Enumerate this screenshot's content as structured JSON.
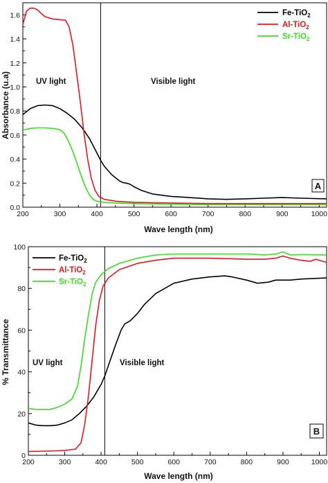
{
  "chart_data": [
    {
      "type": "line",
      "panel": "A",
      "xlabel": "Wave length (nm)",
      "ylabel": "Absorbance (u.a)",
      "xlim": [
        200,
        1020
      ],
      "ylim": [
        0,
        1.7
      ],
      "xticks": [
        "200",
        "300",
        "400",
        "500",
        "600",
        "700",
        "800",
        "900",
        "1000"
      ],
      "yticks": [
        "0.0",
        "0.2",
        "0.4",
        "0.6",
        "0.8",
        "1.0",
        "1.2",
        "1.4",
        "1.6"
      ],
      "grid": false,
      "legend_position": "top-right",
      "annotations": {
        "uv": "UV light",
        "visible": "Visible light"
      },
      "divider_x": 410,
      "series": [
        {
          "name": "Fe-TiO2",
          "color": "#000000",
          "points": [
            [
              200,
              0.77
            ],
            [
              220,
              0.82
            ],
            [
              240,
              0.845
            ],
            [
              260,
              0.85
            ],
            [
              280,
              0.845
            ],
            [
              300,
              0.82
            ],
            [
              320,
              0.78
            ],
            [
              340,
              0.73
            ],
            [
              360,
              0.66
            ],
            [
              380,
              0.57
            ],
            [
              400,
              0.45
            ],
            [
              410,
              0.39
            ],
            [
              420,
              0.34
            ],
            [
              440,
              0.27
            ],
            [
              460,
              0.22
            ],
            [
              470,
              0.205
            ],
            [
              480,
              0.2
            ],
            [
              490,
              0.19
            ],
            [
              500,
              0.17
            ],
            [
              520,
              0.14
            ],
            [
              550,
              0.11
            ],
            [
              600,
              0.09
            ],
            [
              650,
              0.08
            ],
            [
              700,
              0.07
            ],
            [
              750,
              0.065
            ],
            [
              800,
              0.07
            ],
            [
              850,
              0.075
            ],
            [
              900,
              0.08
            ],
            [
              950,
              0.075
            ],
            [
              1020,
              0.07
            ]
          ]
        },
        {
          "name": "Al-TiO2",
          "color": "#e8141b",
          "points": [
            [
              200,
              1.52
            ],
            [
              210,
              1.63
            ],
            [
              220,
              1.655
            ],
            [
              230,
              1.655
            ],
            [
              240,
              1.64
            ],
            [
              250,
              1.61
            ],
            [
              260,
              1.585
            ],
            [
              280,
              1.565
            ],
            [
              300,
              1.56
            ],
            [
              315,
              1.555
            ],
            [
              325,
              1.5
            ],
            [
              335,
              1.35
            ],
            [
              345,
              1.12
            ],
            [
              355,
              0.88
            ],
            [
              365,
              0.62
            ],
            [
              375,
              0.4
            ],
            [
              385,
              0.24
            ],
            [
              395,
              0.14
            ],
            [
              405,
              0.09
            ],
            [
              420,
              0.065
            ],
            [
              450,
              0.05
            ],
            [
              500,
              0.04
            ],
            [
              600,
              0.035
            ],
            [
              700,
              0.03
            ],
            [
              800,
              0.03
            ],
            [
              900,
              0.03
            ],
            [
              1020,
              0.03
            ]
          ]
        },
        {
          "name": "Sr-TiO2",
          "color": "#36e01c",
          "points": [
            [
              200,
              0.64
            ],
            [
              220,
              0.655
            ],
            [
              240,
              0.66
            ],
            [
              260,
              0.66
            ],
            [
              280,
              0.655
            ],
            [
              300,
              0.645
            ],
            [
              310,
              0.62
            ],
            [
              320,
              0.57
            ],
            [
              330,
              0.5
            ],
            [
              340,
              0.42
            ],
            [
              350,
              0.33
            ],
            [
              360,
              0.24
            ],
            [
              370,
              0.16
            ],
            [
              380,
              0.1
            ],
            [
              390,
              0.065
            ],
            [
              400,
              0.05
            ],
            [
              420,
              0.04
            ],
            [
              450,
              0.035
            ],
            [
              500,
              0.03
            ],
            [
              600,
              0.025
            ],
            [
              700,
              0.02
            ],
            [
              800,
              0.02
            ],
            [
              900,
              0.02
            ],
            [
              1020,
              0.02
            ]
          ]
        }
      ]
    },
    {
      "type": "line",
      "panel": "B",
      "xlabel": "Wave length (nm)",
      "ylabel": "% Transmittance",
      "xlim": [
        200,
        1020
      ],
      "ylim": [
        0,
        100
      ],
      "xticks": [
        "200",
        "300",
        "400",
        "500",
        "600",
        "700",
        "800",
        "900",
        "1000"
      ],
      "yticks": [
        "0",
        "20",
        "40",
        "60",
        "80",
        "100"
      ],
      "grid": false,
      "legend_position": "top-left",
      "annotations": {
        "uv": "UV light",
        "visible": "Visible light"
      },
      "divider_x": 410,
      "series": [
        {
          "name": "Fe-TiO2",
          "color": "#000000",
          "points": [
            [
              200,
              15.5
            ],
            [
              220,
              14.5
            ],
            [
              240,
              14.2
            ],
            [
              260,
              14.2
            ],
            [
              280,
              14.5
            ],
            [
              300,
              15.5
            ],
            [
              320,
              17
            ],
            [
              340,
              20
            ],
            [
              360,
              23.5
            ],
            [
              380,
              28
            ],
            [
              400,
              34
            ],
            [
              410,
              38
            ],
            [
              420,
              43
            ],
            [
              440,
              53
            ],
            [
              455,
              60
            ],
            [
              465,
              63
            ],
            [
              480,
              64.5
            ],
            [
              500,
              68
            ],
            [
              520,
              72.5
            ],
            [
              550,
              77.5
            ],
            [
              600,
              82.5
            ],
            [
              650,
              84.5
            ],
            [
              700,
              85.5
            ],
            [
              740,
              86
            ],
            [
              760,
              85.5
            ],
            [
              800,
              84
            ],
            [
              830,
              82.5
            ],
            [
              860,
              83
            ],
            [
              880,
              84
            ],
            [
              900,
              84
            ],
            [
              920,
              84
            ],
            [
              950,
              84.5
            ],
            [
              1020,
              85
            ]
          ]
        },
        {
          "name": "Al-TiO2",
          "color": "#e8141b",
          "points": [
            [
              200,
              1.8
            ],
            [
              250,
              2
            ],
            [
              300,
              2.3
            ],
            [
              330,
              3
            ],
            [
              345,
              6
            ],
            [
              355,
              15
            ],
            [
              365,
              28
            ],
            [
              375,
              45
            ],
            [
              385,
              62
            ],
            [
              395,
              74
            ],
            [
              405,
              81
            ],
            [
              420,
              85
            ],
            [
              450,
              89
            ],
            [
              500,
              92
            ],
            [
              550,
              93.5
            ],
            [
              600,
              94.5
            ],
            [
              700,
              94.5
            ],
            [
              800,
              94
            ],
            [
              850,
              94
            ],
            [
              880,
              94.5
            ],
            [
              900,
              95.5
            ],
            [
              920,
              94.5
            ],
            [
              950,
              93.5
            ],
            [
              975,
              93
            ],
            [
              990,
              94
            ],
            [
              1020,
              92.5
            ]
          ]
        },
        {
          "name": "Sr-TiO2",
          "color": "#36e01c",
          "points": [
            [
              200,
              22.5
            ],
            [
              220,
              22
            ],
            [
              240,
              22
            ],
            [
              260,
              22
            ],
            [
              280,
              23
            ],
            [
              300,
              24.5
            ],
            [
              320,
              27
            ],
            [
              335,
              33
            ],
            [
              345,
              43
            ],
            [
              355,
              56
            ],
            [
              365,
              67
            ],
            [
              375,
              77
            ],
            [
              385,
              83
            ],
            [
              400,
              86.5
            ],
            [
              420,
              89.5
            ],
            [
              450,
              92
            ],
            [
              500,
              94.5
            ],
            [
              550,
              96
            ],
            [
              600,
              96.5
            ],
            [
              700,
              96.5
            ],
            [
              800,
              96.5
            ],
            [
              850,
              96
            ],
            [
              880,
              96.5
            ],
            [
              900,
              97.5
            ],
            [
              920,
              96
            ],
            [
              950,
              96.2
            ],
            [
              1020,
              96
            ]
          ]
        }
      ]
    }
  ]
}
